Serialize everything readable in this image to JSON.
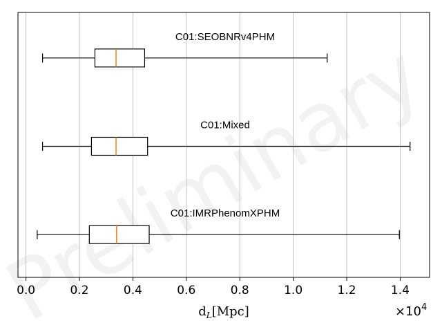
{
  "chart_data": {
    "type": "boxplot",
    "orientation": "horizontal",
    "title": "",
    "xlabel_main": "d",
    "xlabel_sub": "L",
    "xlabel_unit": "[Mpc]",
    "x_offset_prefix": "×10",
    "x_offset_exponent": "4",
    "xlim": [
      -0.03,
      1.51
    ],
    "x_ticks": [
      0.0,
      0.2,
      0.4,
      0.6,
      0.8,
      1.0,
      1.2,
      1.4
    ],
    "x_tick_labels": [
      "0.0",
      "0.2",
      "0.4",
      "0.6",
      "0.8",
      "1.0",
      "1.2",
      "1.4"
    ],
    "grid": "vertical",
    "watermark": "Preliminary",
    "colors": {
      "median": "#ff7f0e",
      "box": "#000000",
      "grid": "#b0b0b0"
    },
    "series": [
      {
        "name": "C01:SEOBNRv4PHM",
        "whisker_low": 0.062,
        "q1": 0.258,
        "median": 0.337,
        "q3": 0.444,
        "whisker_high": 1.127
      },
      {
        "name": "C01:Mixed",
        "whisker_low": 0.062,
        "q1": 0.245,
        "median": 0.337,
        "q3": 0.455,
        "whisker_high": 1.437
      },
      {
        "name": "C01:IMRPhenomXPHM",
        "whisker_low": 0.042,
        "q1": 0.237,
        "median": 0.339,
        "q3": 0.461,
        "whisker_high": 1.397
      }
    ]
  }
}
